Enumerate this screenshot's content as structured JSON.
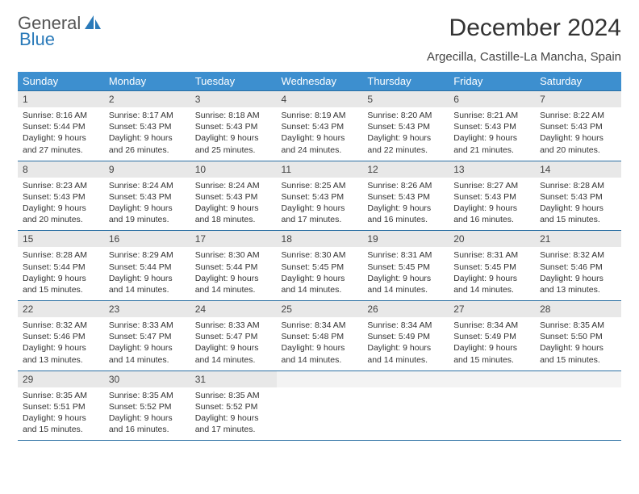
{
  "brand": {
    "part1": "General",
    "part2": "Blue",
    "icon": "sail-icon"
  },
  "title": "December 2024",
  "subtitle": "Argecilla, Castille-La Mancha, Spain",
  "colors": {
    "header_bg": "#3d8fcf",
    "header_text": "#ffffff",
    "row_divider": "#2a6fa3",
    "daynum_bg": "#e8e8e8",
    "empty_bg": "#f3f3f3",
    "brand_blue": "#2a7ab9",
    "body_text": "#333333",
    "background": "#ffffff"
  },
  "typography": {
    "title_fontsize": 30,
    "subtitle_fontsize": 15,
    "dayheader_fontsize": 13,
    "daynum_fontsize": 12,
    "body_fontsize": 10.5
  },
  "calendar": {
    "type": "table",
    "columns": [
      "Sunday",
      "Monday",
      "Tuesday",
      "Wednesday",
      "Thursday",
      "Friday",
      "Saturday"
    ],
    "weeks": [
      [
        {
          "n": "1",
          "r": "8:16 AM",
          "s": "5:44 PM",
          "d": "9 hours and 27 minutes."
        },
        {
          "n": "2",
          "r": "8:17 AM",
          "s": "5:43 PM",
          "d": "9 hours and 26 minutes."
        },
        {
          "n": "3",
          "r": "8:18 AM",
          "s": "5:43 PM",
          "d": "9 hours and 25 minutes."
        },
        {
          "n": "4",
          "r": "8:19 AM",
          "s": "5:43 PM",
          "d": "9 hours and 24 minutes."
        },
        {
          "n": "5",
          "r": "8:20 AM",
          "s": "5:43 PM",
          "d": "9 hours and 22 minutes."
        },
        {
          "n": "6",
          "r": "8:21 AM",
          "s": "5:43 PM",
          "d": "9 hours and 21 minutes."
        },
        {
          "n": "7",
          "r": "8:22 AM",
          "s": "5:43 PM",
          "d": "9 hours and 20 minutes."
        }
      ],
      [
        {
          "n": "8",
          "r": "8:23 AM",
          "s": "5:43 PM",
          "d": "9 hours and 20 minutes."
        },
        {
          "n": "9",
          "r": "8:24 AM",
          "s": "5:43 PM",
          "d": "9 hours and 19 minutes."
        },
        {
          "n": "10",
          "r": "8:24 AM",
          "s": "5:43 PM",
          "d": "9 hours and 18 minutes."
        },
        {
          "n": "11",
          "r": "8:25 AM",
          "s": "5:43 PM",
          "d": "9 hours and 17 minutes."
        },
        {
          "n": "12",
          "r": "8:26 AM",
          "s": "5:43 PM",
          "d": "9 hours and 16 minutes."
        },
        {
          "n": "13",
          "r": "8:27 AM",
          "s": "5:43 PM",
          "d": "9 hours and 16 minutes."
        },
        {
          "n": "14",
          "r": "8:28 AM",
          "s": "5:43 PM",
          "d": "9 hours and 15 minutes."
        }
      ],
      [
        {
          "n": "15",
          "r": "8:28 AM",
          "s": "5:44 PM",
          "d": "9 hours and 15 minutes."
        },
        {
          "n": "16",
          "r": "8:29 AM",
          "s": "5:44 PM",
          "d": "9 hours and 14 minutes."
        },
        {
          "n": "17",
          "r": "8:30 AM",
          "s": "5:44 PM",
          "d": "9 hours and 14 minutes."
        },
        {
          "n": "18",
          "r": "8:30 AM",
          "s": "5:45 PM",
          "d": "9 hours and 14 minutes."
        },
        {
          "n": "19",
          "r": "8:31 AM",
          "s": "5:45 PM",
          "d": "9 hours and 14 minutes."
        },
        {
          "n": "20",
          "r": "8:31 AM",
          "s": "5:45 PM",
          "d": "9 hours and 14 minutes."
        },
        {
          "n": "21",
          "r": "8:32 AM",
          "s": "5:46 PM",
          "d": "9 hours and 13 minutes."
        }
      ],
      [
        {
          "n": "22",
          "r": "8:32 AM",
          "s": "5:46 PM",
          "d": "9 hours and 13 minutes."
        },
        {
          "n": "23",
          "r": "8:33 AM",
          "s": "5:47 PM",
          "d": "9 hours and 14 minutes."
        },
        {
          "n": "24",
          "r": "8:33 AM",
          "s": "5:47 PM",
          "d": "9 hours and 14 minutes."
        },
        {
          "n": "25",
          "r": "8:34 AM",
          "s": "5:48 PM",
          "d": "9 hours and 14 minutes."
        },
        {
          "n": "26",
          "r": "8:34 AM",
          "s": "5:49 PM",
          "d": "9 hours and 14 minutes."
        },
        {
          "n": "27",
          "r": "8:34 AM",
          "s": "5:49 PM",
          "d": "9 hours and 15 minutes."
        },
        {
          "n": "28",
          "r": "8:35 AM",
          "s": "5:50 PM",
          "d": "9 hours and 15 minutes."
        }
      ],
      [
        {
          "n": "29",
          "r": "8:35 AM",
          "s": "5:51 PM",
          "d": "9 hours and 15 minutes."
        },
        {
          "n": "30",
          "r": "8:35 AM",
          "s": "5:52 PM",
          "d": "9 hours and 16 minutes."
        },
        {
          "n": "31",
          "r": "8:35 AM",
          "s": "5:52 PM",
          "d": "9 hours and 17 minutes."
        },
        null,
        null,
        null,
        null
      ]
    ],
    "labels": {
      "sunrise_prefix": "Sunrise: ",
      "sunset_prefix": "Sunset: ",
      "daylight_prefix": "Daylight: "
    }
  }
}
